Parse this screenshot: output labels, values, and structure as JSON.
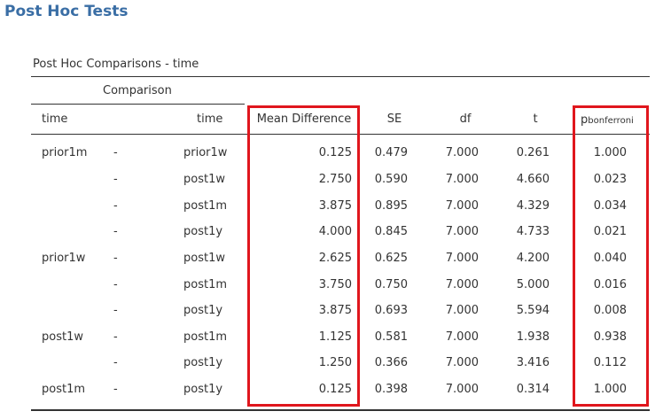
{
  "section_title": "Post Hoc Tests",
  "table_title": "Post Hoc Comparisons - time",
  "comparison_label": "Comparison",
  "headers": {
    "time1": "time",
    "time2": "time",
    "mean_difference": "Mean Difference",
    "se": "SE",
    "df": "df",
    "t": "t",
    "p_main": "p",
    "p_sub": "bonferroni"
  },
  "rows": [
    {
      "time1": "prior1m",
      "dash": "-",
      "time2": "prior1w",
      "md": "0.125",
      "se": "0.479",
      "df": "7.000",
      "t": "0.261",
      "p": "1.000"
    },
    {
      "time1": "",
      "dash": "-",
      "time2": "post1w",
      "md": "2.750",
      "se": "0.590",
      "df": "7.000",
      "t": "4.660",
      "p": "0.023"
    },
    {
      "time1": "",
      "dash": "-",
      "time2": "post1m",
      "md": "3.875",
      "se": "0.895",
      "df": "7.000",
      "t": "4.329",
      "p": "0.034"
    },
    {
      "time1": "",
      "dash": "-",
      "time2": "post1y",
      "md": "4.000",
      "se": "0.845",
      "df": "7.000",
      "t": "4.733",
      "p": "0.021"
    },
    {
      "time1": "prior1w",
      "dash": "-",
      "time2": "post1w",
      "md": "2.625",
      "se": "0.625",
      "df": "7.000",
      "t": "4.200",
      "p": "0.040"
    },
    {
      "time1": "",
      "dash": "-",
      "time2": "post1m",
      "md": "3.750",
      "se": "0.750",
      "df": "7.000",
      "t": "5.000",
      "p": "0.016"
    },
    {
      "time1": "",
      "dash": "-",
      "time2": "post1y",
      "md": "3.875",
      "se": "0.693",
      "df": "7.000",
      "t": "5.594",
      "p": "0.008"
    },
    {
      "time1": "post1w",
      "dash": "-",
      "time2": "post1m",
      "md": "1.125",
      "se": "0.581",
      "df": "7.000",
      "t": "1.938",
      "p": "0.938"
    },
    {
      "time1": "",
      "dash": "-",
      "time2": "post1y",
      "md": "1.250",
      "se": "0.366",
      "df": "7.000",
      "t": "3.416",
      "p": "0.112"
    },
    {
      "time1": "post1m",
      "dash": "-",
      "time2": "post1y",
      "md": "0.125",
      "se": "0.398",
      "df": "7.000",
      "t": "0.314",
      "p": "1.000"
    }
  ],
  "colors": {
    "title": "#3a6ea5",
    "highlight": "#e0161d",
    "text": "#333333"
  }
}
